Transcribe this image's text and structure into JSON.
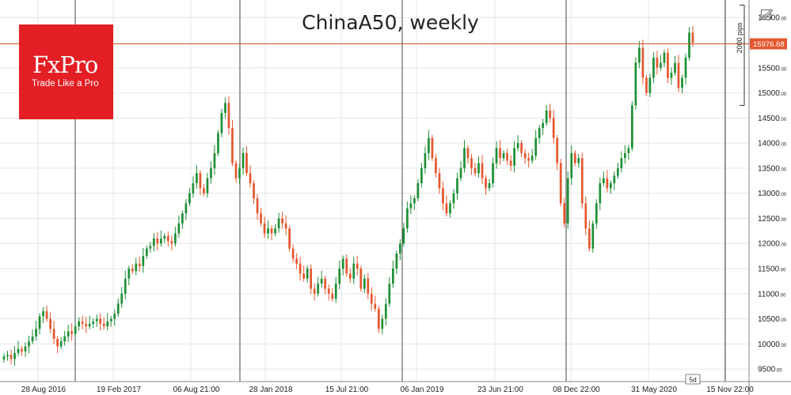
{
  "colors": {
    "bull": "#1f8f35",
    "bear": "#e4572e",
    "price_line": "#e4572e",
    "grid": "#e6e6e6",
    "vline": "#444444",
    "logo_bg": "#e31e24"
  },
  "logo": {
    "word": "FxPro",
    "tagline": "Trade Like a Pro"
  },
  "icons": {
    "edit": "edit-icon"
  },
  "period_badge": "5d",
  "pips_label": "2000 pips",
  "current_price_label": "15976.68",
  "chart_data": {
    "type": "candlestick",
    "title": "ChinaA50, weekly",
    "x_tick_labels": [
      "28 Aug 2016",
      "19 Feb 2017",
      "06 Aug 21:00",
      "28 Jan 2018",
      "15 Jul 21:00",
      "06 Jan 2019",
      "23 Jun 21:00",
      "08 Dec 22:00",
      "31 May 2020",
      "15 Nov 22:00"
    ],
    "y_ticks": [
      9500,
      10000,
      10500,
      11000,
      11500,
      12000,
      12500,
      13000,
      13500,
      14000,
      14500,
      15000,
      15500,
      16000,
      16500
    ],
    "y_range": [
      9250,
      16850
    ],
    "current_price": 15976.68,
    "grid": true,
    "candles_approx_close": [
      9750,
      9780,
      9700,
      9820,
      9900,
      9850,
      9950,
      10050,
      10150,
      10300,
      10550,
      10650,
      10500,
      10300,
      10100,
      9950,
      10050,
      10150,
      10250,
      10200,
      10350,
      10450,
      10400,
      10350,
      10400,
      10450,
      10500,
      10400,
      10350,
      10450,
      10500,
      10600,
      10800,
      11000,
      11300,
      11500,
      11450,
      11600,
      11550,
      11750,
      11900,
      11950,
      12100,
      12000,
      12100,
      12150,
      12050,
      12000,
      12200,
      12400,
      12600,
      12800,
      13000,
      13200,
      13400,
      13100,
      13000,
      13300,
      13500,
      13800,
      14200,
      14600,
      14800,
      14300,
      13600,
      13300,
      13500,
      13800,
      13400,
      13200,
      12900,
      12600,
      12400,
      12200,
      12300,
      12200,
      12300,
      12500,
      12400,
      12300,
      11900,
      11700,
      11600,
      11400,
      11300,
      11500,
      11100,
      11000,
      11200,
      11300,
      11100,
      11000,
      10900,
      11200,
      11500,
      11700,
      11400,
      11300,
      11600,
      11500,
      11100,
      11300,
      11000,
      10800,
      10700,
      10300,
      10500,
      10800,
      11200,
      11500,
      11800,
      12000,
      12300,
      12700,
      12800,
      12900,
      13200,
      13500,
      13800,
      14100,
      13700,
      13400,
      13100,
      12800,
      12600,
      12800,
      13000,
      13300,
      13500,
      13900,
      13700,
      13500,
      13400,
      13600,
      13300,
      13100,
      13200,
      13600,
      13900,
      13700,
      13800,
      13650,
      13550,
      13900,
      14000,
      13800,
      13700,
      13650,
      13750,
      14100,
      14300,
      14400,
      14650,
      14500,
      14100,
      13600,
      12800,
      12400,
      13300,
      13800,
      13600,
      13700,
      12800,
      12300,
      11900,
      12400,
      12800,
      13200,
      13300,
      13100,
      13200,
      13350,
      13500,
      13700,
      13800,
      13900,
      14750,
      15600,
      15900,
      15300,
      15000,
      15300,
      15700,
      15500,
      15600,
      15800,
      15300,
      15400,
      15600,
      15100,
      15300,
      15700,
      16200,
      16000
    ]
  }
}
